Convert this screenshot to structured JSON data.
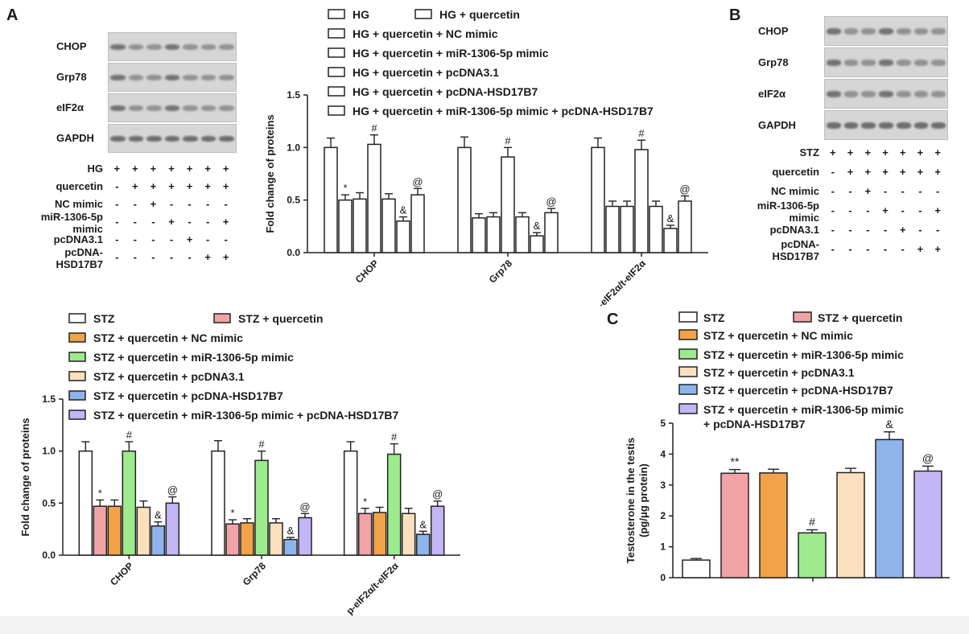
{
  "panels": {
    "a": "A",
    "b": "B",
    "c": "C"
  },
  "blot_a": {
    "proteins": [
      "CHOP",
      "Grp78",
      "eIF2α",
      "GAPDH"
    ],
    "conditions": [
      {
        "label": "HG",
        "signs": [
          "+",
          "+",
          "+",
          "+",
          "+",
          "+",
          "+"
        ]
      },
      {
        "label": "quercetin",
        "signs": [
          "-",
          "+",
          "+",
          "+",
          "+",
          "+",
          "+"
        ]
      },
      {
        "label": "NC mimic",
        "signs": [
          "-",
          "-",
          "+",
          "-",
          "-",
          "-",
          "-"
        ]
      },
      {
        "label": "miR-1306-5p\nmimic",
        "signs": [
          "-",
          "-",
          "-",
          "+",
          "-",
          "-",
          "+"
        ]
      },
      {
        "label": "pcDNA3.1",
        "signs": [
          "-",
          "-",
          "-",
          "-",
          "+",
          "-",
          "-"
        ]
      },
      {
        "label": "pcDNA-\nHSD17B7",
        "signs": [
          "-",
          "-",
          "-",
          "-",
          "-",
          "+",
          "+"
        ]
      }
    ]
  },
  "blot_b": {
    "proteins": [
      "CHOP",
      "Grp78",
      "eIF2α",
      "GAPDH"
    ],
    "conditions": [
      {
        "label": "STZ",
        "signs": [
          "+",
          "+",
          "+",
          "+",
          "+",
          "+",
          "+"
        ]
      },
      {
        "label": "quercetin",
        "signs": [
          "-",
          "+",
          "+",
          "+",
          "+",
          "+",
          "+"
        ]
      },
      {
        "label": "NC mimic",
        "signs": [
          "-",
          "-",
          "+",
          "-",
          "-",
          "-",
          "-"
        ]
      },
      {
        "label": "miR-1306-5p\nmimic",
        "signs": [
          "-",
          "-",
          "-",
          "+",
          "-",
          "-",
          "+"
        ]
      },
      {
        "label": "pcDNA3.1",
        "signs": [
          "-",
          "-",
          "-",
          "-",
          "+",
          "-",
          "-"
        ]
      },
      {
        "label": "pcDNA-\nHSD17B7",
        "signs": [
          "-",
          "-",
          "-",
          "-",
          "-",
          "+",
          "+"
        ]
      }
    ]
  },
  "chart_data": [
    {
      "type": "bar",
      "categories": [
        "CHOP",
        "Grp78",
        "p-eIF2α/t-eIF2α"
      ],
      "ylabel": "Fold change of proteins",
      "ylim": [
        0,
        1.5
      ],
      "yticks": [
        "0.0",
        "0.5",
        "1.0",
        "1.5"
      ],
      "legend": "top",
      "series": [
        {
          "name": "HG",
          "color": "#ffffff",
          "values": [
            1.0,
            1.0,
            1.0
          ],
          "errors": [
            0.09,
            0.1,
            0.09
          ],
          "marks": [
            "",
            "",
            ""
          ]
        },
        {
          "name": "HG + quercetin",
          "color": "#ffffff",
          "values": [
            0.5,
            0.33,
            0.44
          ],
          "errors": [
            0.05,
            0.04,
            0.05
          ],
          "marks": [
            "*",
            "",
            ""
          ]
        },
        {
          "name": "HG + quercetin + NC mimic",
          "color": "#ffffff",
          "values": [
            0.51,
            0.34,
            0.44
          ],
          "errors": [
            0.06,
            0.04,
            0.05
          ],
          "marks": [
            "",
            "",
            ""
          ]
        },
        {
          "name": "HG + quercetin + miR-1306-5p mimic",
          "color": "#ffffff",
          "values": [
            1.03,
            0.91,
            0.98
          ],
          "errors": [
            0.09,
            0.09,
            0.09
          ],
          "marks": [
            "#",
            "#",
            "#"
          ]
        },
        {
          "name": "HG + quercetin + pcDNA3.1",
          "color": "#ffffff",
          "values": [
            0.51,
            0.34,
            0.44
          ],
          "errors": [
            0.05,
            0.04,
            0.05
          ],
          "marks": [
            "",
            "",
            ""
          ]
        },
        {
          "name": "HG + quercetin + pcDNA-HSD17B7",
          "color": "#ffffff",
          "values": [
            0.3,
            0.16,
            0.23
          ],
          "errors": [
            0.04,
            0.03,
            0.03
          ],
          "marks": [
            "&",
            "&",
            "&"
          ]
        },
        {
          "name": "HG + quercetin + miR-1306-5p mimic + pcDNA-HSD17B7",
          "color": "#ffffff",
          "values": [
            0.55,
            0.38,
            0.49
          ],
          "errors": [
            0.06,
            0.04,
            0.05
          ],
          "marks": [
            "@",
            "@",
            "@"
          ]
        }
      ]
    },
    {
      "type": "bar",
      "categories": [
        "CHOP",
        "Grp78",
        "p-eIF2α/t-eIF2α"
      ],
      "ylabel": "Fold change of proteins",
      "ylim": [
        0,
        1.5
      ],
      "yticks": [
        "0.0",
        "0.5",
        "1.0",
        "1.5"
      ],
      "legend": "top",
      "series": [
        {
          "name": "STZ",
          "color": "#ffffff",
          "values": [
            1.0,
            1.0,
            1.0
          ],
          "errors": [
            0.09,
            0.1,
            0.09
          ],
          "marks": [
            "",
            "",
            ""
          ]
        },
        {
          "name": "STZ + quercetin",
          "color": "#f2a3a8",
          "values": [
            0.47,
            0.3,
            0.4
          ],
          "errors": [
            0.06,
            0.04,
            0.05
          ],
          "marks": [
            "*",
            "*",
            "*"
          ]
        },
        {
          "name": "STZ + quercetin + NC mimic",
          "color": "#f2a24a",
          "values": [
            0.47,
            0.31,
            0.41
          ],
          "errors": [
            0.06,
            0.04,
            0.05
          ],
          "marks": [
            "",
            "",
            ""
          ]
        },
        {
          "name": "STZ + quercetin + miR-1306-5p mimic",
          "color": "#9deb8d",
          "values": [
            1.0,
            0.91,
            0.97
          ],
          "errors": [
            0.09,
            0.09,
            0.1
          ],
          "marks": [
            "#",
            "#",
            "#"
          ]
        },
        {
          "name": "STZ + quercetin + pcDNA3.1",
          "color": "#fbe0bd",
          "values": [
            0.46,
            0.31,
            0.4
          ],
          "errors": [
            0.06,
            0.04,
            0.05
          ],
          "marks": [
            "",
            "",
            ""
          ]
        },
        {
          "name": "STZ + quercetin + pcDNA-HSD17B7",
          "color": "#8fb4ec",
          "values": [
            0.28,
            0.15,
            0.2
          ],
          "errors": [
            0.04,
            0.02,
            0.03
          ],
          "marks": [
            "&",
            "&",
            "&"
          ]
        },
        {
          "name": "STZ + quercetin + miR-1306-5p mimic + pcDNA-HSD17B7",
          "color": "#c4b6f5",
          "values": [
            0.5,
            0.36,
            0.47
          ],
          "errors": [
            0.06,
            0.04,
            0.05
          ],
          "marks": [
            "@",
            "@",
            "@"
          ]
        }
      ]
    },
    {
      "type": "bar",
      "categories": [
        "STZ",
        "STZ + quercetin",
        "STZ + quercetin + NC mimic",
        "STZ + quercetin + miR-1306-5p mimic",
        "STZ + quercetin + pcDNA3.1",
        "STZ + quercetin + pcDNA-HSD17B7",
        "STZ + quercetin + miR-1306-5p mimic\n+ pcDNA-HSD17B7"
      ],
      "ylabel": "Testosterone in the testis\n(pg/μg protein)",
      "ylim": [
        0,
        5
      ],
      "yticks": [
        "0",
        "1",
        "2",
        "3",
        "4",
        "5"
      ],
      "legend": "top",
      "values": [
        0.57,
        3.38,
        3.39,
        1.45,
        3.4,
        4.47,
        3.45
      ],
      "errors": [
        0.05,
        0.12,
        0.12,
        0.1,
        0.14,
        0.25,
        0.16
      ],
      "colors": [
        "#ffffff",
        "#f2a3a8",
        "#f2a24a",
        "#9deb8d",
        "#fbe0bd",
        "#8fb4ec",
        "#c4b6f5"
      ],
      "marks": [
        "",
        "**",
        "",
        "#",
        "",
        "&",
        "@"
      ]
    }
  ]
}
